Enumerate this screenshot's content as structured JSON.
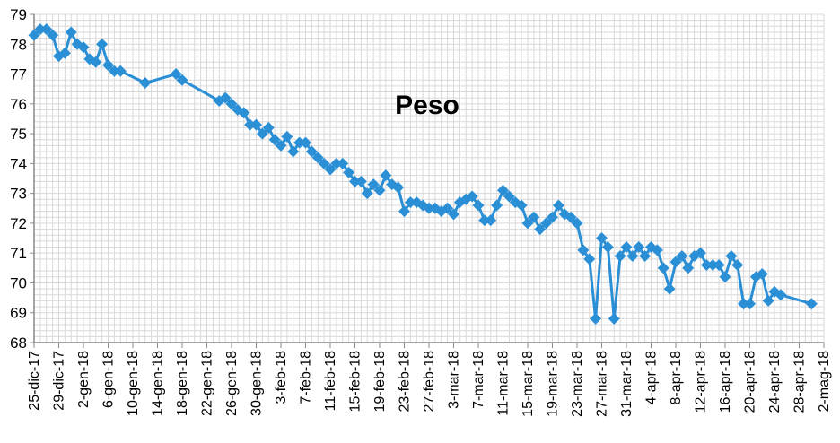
{
  "chart_data": {
    "type": "line",
    "title": "Peso",
    "xlabel": "",
    "ylabel": "",
    "ylim": [
      68,
      79
    ],
    "yticks": [
      68,
      69,
      70,
      71,
      72,
      73,
      74,
      75,
      76,
      77,
      78,
      79
    ],
    "x_start": "2017-12-25",
    "x_end": "2018-05-02",
    "xtick_labels": [
      "25-dic-17",
      "29-dic-17",
      "2-gen-18",
      "6-gen-18",
      "10-gen-18",
      "14-gen-18",
      "18-gen-18",
      "22-gen-18",
      "26-gen-18",
      "30-gen-18",
      "3-feb-18",
      "7-feb-18",
      "11-feb-18",
      "15-feb-18",
      "19-feb-18",
      "23-feb-18",
      "27-feb-18",
      "3-mar-18",
      "7-mar-18",
      "11-mar-18",
      "15-mar-18",
      "19-mar-18",
      "23-mar-18",
      "27-mar-18",
      "31-mar-18",
      "4-apr-18",
      "8-apr-18",
      "12-apr-18",
      "16-apr-18",
      "20-apr-18",
      "24-apr-18",
      "28-apr-18",
      "2-mag-18"
    ],
    "grid": true,
    "line_color": "#2b8fd6",
    "marker": "diamond",
    "series": [
      {
        "x": [
          "2017-12-25",
          "2017-12-26",
          "2017-12-27",
          "2017-12-28",
          "2017-12-29",
          "2017-12-30",
          "2017-12-31",
          "2018-01-01",
          "2018-01-02",
          "2018-01-03",
          "2018-01-04",
          "2018-01-05",
          "2018-01-06",
          "2018-01-07",
          "2018-01-08",
          "2018-01-12",
          "2018-01-17",
          "2018-01-18",
          "2018-01-24",
          "2018-01-25",
          "2018-01-26",
          "2018-01-27",
          "2018-01-28",
          "2018-01-29",
          "2018-01-30",
          "2018-01-31",
          "2018-02-01",
          "2018-02-02",
          "2018-02-03",
          "2018-02-04",
          "2018-02-05",
          "2018-02-06",
          "2018-02-07",
          "2018-02-08",
          "2018-02-09",
          "2018-02-10",
          "2018-02-11",
          "2018-02-12",
          "2018-02-13",
          "2018-02-14",
          "2018-02-15",
          "2018-02-16",
          "2018-02-17",
          "2018-02-18",
          "2018-02-19",
          "2018-02-20",
          "2018-02-21",
          "2018-02-22",
          "2018-02-23",
          "2018-02-24",
          "2018-02-25",
          "2018-02-26",
          "2018-02-27",
          "2018-02-28",
          "2018-03-01",
          "2018-03-02",
          "2018-03-03",
          "2018-03-04",
          "2018-03-05",
          "2018-03-06",
          "2018-03-07",
          "2018-03-08",
          "2018-03-09",
          "2018-03-10",
          "2018-03-11",
          "2018-03-12",
          "2018-03-13",
          "2018-03-14",
          "2018-03-15",
          "2018-03-16",
          "2018-03-17",
          "2018-03-18",
          "2018-03-19",
          "2018-03-20",
          "2018-03-21",
          "2018-03-22",
          "2018-03-23",
          "2018-03-24",
          "2018-03-25",
          "2018-03-26",
          "2018-03-27",
          "2018-03-28",
          "2018-03-29",
          "2018-03-30",
          "2018-03-31",
          "2018-04-01",
          "2018-04-02",
          "2018-04-03",
          "2018-04-04",
          "2018-04-05",
          "2018-04-06",
          "2018-04-07",
          "2018-04-08",
          "2018-04-09",
          "2018-04-10",
          "2018-04-11",
          "2018-04-12",
          "2018-04-13",
          "2018-04-14",
          "2018-04-15",
          "2018-04-16",
          "2018-04-17",
          "2018-04-18",
          "2018-04-19",
          "2018-04-20",
          "2018-04-21",
          "2018-04-22",
          "2018-04-23",
          "2018-04-24",
          "2018-04-25",
          "2018-04-30"
        ],
        "y": [
          78.3,
          78.5,
          78.5,
          78.3,
          77.6,
          77.7,
          78.4,
          78.0,
          77.9,
          77.5,
          77.4,
          78.0,
          77.3,
          77.1,
          77.1,
          76.7,
          77.0,
          76.8,
          76.1,
          76.2,
          76.0,
          75.8,
          75.7,
          75.3,
          75.3,
          75.0,
          75.2,
          74.8,
          74.6,
          74.9,
          74.4,
          74.7,
          74.7,
          74.4,
          74.2,
          74.0,
          73.8,
          74.0,
          74.0,
          73.7,
          73.4,
          73.4,
          73.0,
          73.3,
          73.1,
          73.6,
          73.3,
          73.2,
          72.4,
          72.7,
          72.7,
          72.6,
          72.5,
          72.5,
          72.4,
          72.5,
          72.3,
          72.7,
          72.8,
          72.9,
          72.6,
          72.1,
          72.1,
          72.6,
          73.1,
          72.9,
          72.7,
          72.6,
          72.0,
          72.2,
          71.8,
          72.0,
          72.2,
          72.6,
          72.3,
          72.2,
          72.0,
          71.1,
          70.8,
          68.8,
          71.5,
          71.2,
          68.8,
          70.9,
          71.2,
          70.9,
          71.2,
          70.9,
          71.2,
          71.1,
          70.5,
          69.8,
          70.7,
          70.9,
          70.5,
          70.9,
          71.0,
          70.6,
          70.6,
          70.6,
          70.2,
          70.9,
          70.6,
          69.3,
          69.3,
          70.2,
          70.3,
          69.4,
          69.7,
          69.6,
          69.3
        ]
      }
    ]
  }
}
